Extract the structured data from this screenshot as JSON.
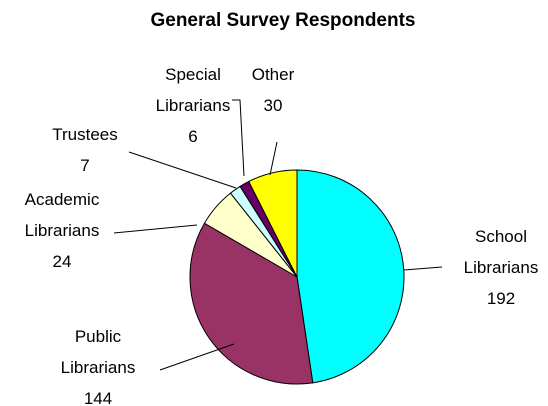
{
  "chart_data": {
    "type": "pie",
    "title": "General Survey Respondents",
    "start_angle_deg": 0,
    "direction": "clockwise",
    "legend": "none",
    "slices": [
      {
        "label_lines": [
          "School",
          "Librarians"
        ],
        "value": 192,
        "color": "#00FFFF"
      },
      {
        "label_lines": [
          "Public",
          "Librarians"
        ],
        "value": 144,
        "color": "#993366"
      },
      {
        "label_lines": [
          "Academic",
          "Librarians"
        ],
        "value": 24,
        "color": "#FFFFCC"
      },
      {
        "label_lines": [
          "Trustees"
        ],
        "value": 7,
        "color": "#CCFFFF"
      },
      {
        "label_lines": [
          "Special",
          "Librarians"
        ],
        "value": 6,
        "color": "#660066"
      },
      {
        "label_lines": [
          "Other"
        ],
        "value": 30,
        "color": "#FFFF00"
      }
    ]
  }
}
